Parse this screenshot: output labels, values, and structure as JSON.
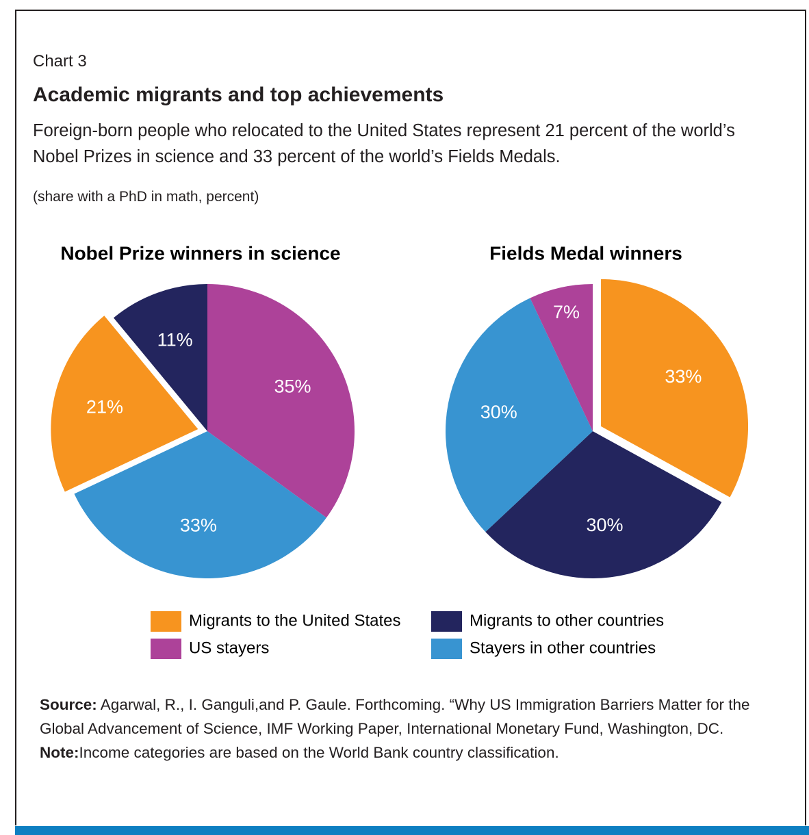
{
  "chart_label": "Chart 3",
  "title": "Academic migrants and top achievements",
  "subtitle": "Foreign-born people who relocated to the United States represent 21 percent of the world’s Nobel Prizes in science and 33 percent of the world’s Fields Medals.",
  "unit_note": "(share with a PhD in math, percent)",
  "chart_data": [
    {
      "type": "pie",
      "title": "Nobel Prize winners in science",
      "categories": [
        "US stayers",
        "Stayers in other countries",
        "Migrants to the United States",
        "Migrants to other countries"
      ],
      "values": [
        35,
        33,
        21,
        11
      ],
      "value_labels": [
        "35%",
        "33%",
        "21%",
        "11%"
      ],
      "colors": [
        "#ad4299",
        "#3894d1",
        "#f7941f",
        "#23255e"
      ],
      "explode": [
        false,
        false,
        true,
        false
      ]
    },
    {
      "type": "pie",
      "title": "Fields Medal winners",
      "categories": [
        "Migrants to the United States",
        "Migrants to other countries",
        "Stayers in other countries",
        "US stayers"
      ],
      "values": [
        33,
        30,
        30,
        7
      ],
      "value_labels": [
        "33%",
        "30%",
        "30%",
        "7%"
      ],
      "colors": [
        "#f7941f",
        "#23255e",
        "#3894d1",
        "#ad4299"
      ],
      "explode": [
        true,
        false,
        false,
        false
      ]
    }
  ],
  "legend": [
    {
      "name": "Migrants to the United States",
      "color": "#f7941f"
    },
    {
      "name": "US stayers",
      "color": "#ad4299"
    },
    {
      "name": "Migrants to other countries",
      "color": "#23255e"
    },
    {
      "name": "Stayers in other countries",
      "color": "#3894d1"
    }
  ],
  "source": {
    "label": "Source:",
    "text": "Agarwal, R., I. Ganguli,and P. Gaule. Forthcoming.  “Why US Immigration Barriers Matter for the Global Advancement of Science, IMF Working Paper, International Monetary Fund, Washington, DC."
  },
  "note": {
    "label": "Note:",
    "text": "Income categories are based on the World Bank country classification."
  }
}
